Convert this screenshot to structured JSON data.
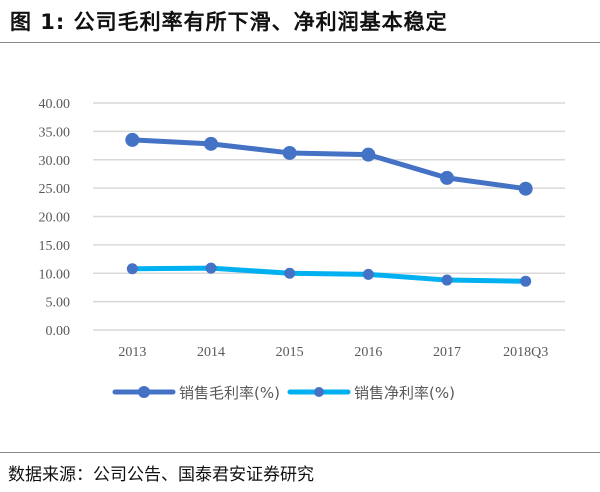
{
  "title": "图 1:  公司毛利率有所下滑、净利润基本稳定",
  "source": "数据来源：公司公告、国泰君安证券研究",
  "chart_data": {
    "type": "line",
    "categories": [
      "2013",
      "2014",
      "2015",
      "2016",
      "2017",
      "2018Q3"
    ],
    "ylim": [
      0,
      40
    ],
    "yticks": [
      "0.00",
      "5.00",
      "10.00",
      "15.00",
      "20.00",
      "25.00",
      "30.00",
      "35.00",
      "40.00"
    ],
    "grid": true,
    "legend": "bottom",
    "series": [
      {
        "name": "销售毛利率(%)",
        "color": "#4472c4",
        "values": [
          33.5,
          32.8,
          31.2,
          30.9,
          26.8,
          24.9
        ]
      },
      {
        "name": "销售净利率(%)",
        "color": "#00b0f0",
        "values": [
          10.8,
          10.9,
          10.0,
          9.8,
          8.8,
          8.6
        ]
      }
    ]
  }
}
